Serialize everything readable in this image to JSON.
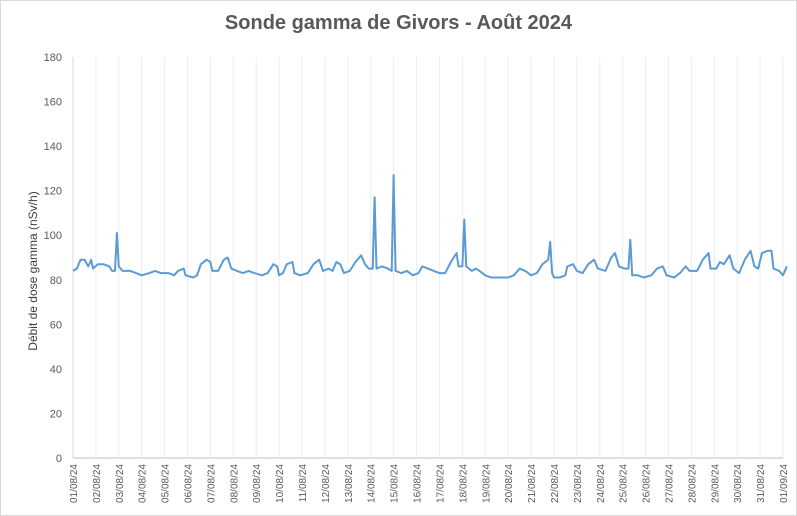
{
  "chart_data": {
    "type": "line",
    "title": "Sonde gamma de Givors - Août 2024",
    "xlabel": "",
    "ylabel": "Débit de dose gamma (nSv/h)",
    "ylim": [
      0,
      180
    ],
    "yticks": [
      0,
      20,
      40,
      60,
      80,
      100,
      120,
      140,
      160,
      180
    ],
    "xticks": [
      "01/08/24",
      "02/08/24",
      "03/08/24",
      "04/08/24",
      "05/08/24",
      "06/08/24",
      "07/08/24",
      "08/08/24",
      "09/08/24",
      "10/08/24",
      "11/08/24",
      "12/08/24",
      "13/08/24",
      "14/08/24",
      "15/08/24",
      "16/08/24",
      "17/08/24",
      "18/08/24",
      "19/08/24",
      "20/08/24",
      "21/08/24",
      "22/08/24",
      "23/08/24",
      "24/08/24",
      "25/08/24",
      "26/08/24",
      "27/08/24",
      "28/08/24",
      "29/08/24",
      "30/08/24",
      "31/08/24",
      "01/09/24"
    ],
    "xlim": [
      "01/08/24",
      "01/09/24"
    ],
    "grid": "vertical",
    "legend": "none",
    "series": [
      {
        "color": "#5b9bd5",
        "points": [
          [
            "01/08/24 00:00",
            84
          ],
          [
            "01/08/24 04:00",
            85
          ],
          [
            "01/08/24 08:00",
            89
          ],
          [
            "01/08/24 12:00",
            89
          ],
          [
            "01/08/24 16:00",
            86
          ],
          [
            "01/08/24 19:00",
            89
          ],
          [
            "01/08/24 21:00",
            85
          ],
          [
            "02/08/24 02:00",
            87
          ],
          [
            "02/08/24 08:00",
            87
          ],
          [
            "02/08/24 14:00",
            86
          ],
          [
            "02/08/24 17:00",
            84
          ],
          [
            "02/08/24 20:00",
            84
          ],
          [
            "02/08/24 22:00",
            101
          ],
          [
            "03/08/24 00:00",
            86
          ],
          [
            "03/08/24 04:00",
            84
          ],
          [
            "03/08/24 12:00",
            84
          ],
          [
            "03/08/24 18:00",
            83
          ],
          [
            "04/08/24 00:00",
            82
          ],
          [
            "04/08/24 08:00",
            83
          ],
          [
            "04/08/24 14:00",
            84
          ],
          [
            "04/08/24 20:00",
            83
          ],
          [
            "05/08/24 04:00",
            83
          ],
          [
            "05/08/24 10:00",
            82
          ],
          [
            "05/08/24 14:00",
            84
          ],
          [
            "05/08/24 20:00",
            85
          ],
          [
            "05/08/24 22:00",
            82
          ],
          [
            "06/08/24 06:00",
            81
          ],
          [
            "06/08/24 10:00",
            82
          ],
          [
            "06/08/24 14:00",
            87
          ],
          [
            "06/08/24 20:00",
            89
          ],
          [
            "07/08/24 00:00",
            88
          ],
          [
            "07/08/24 02:00",
            84
          ],
          [
            "07/08/24 08:00",
            84
          ],
          [
            "07/08/24 14:00",
            89
          ],
          [
            "07/08/24 18:00",
            90
          ],
          [
            "07/08/24 22:00",
            85
          ],
          [
            "08/08/24 04:00",
            84
          ],
          [
            "08/08/24 10:00",
            83
          ],
          [
            "08/08/24 16:00",
            84
          ],
          [
            "08/08/24 22:00",
            83
          ],
          [
            "09/08/24 06:00",
            82
          ],
          [
            "09/08/24 12:00",
            83
          ],
          [
            "09/08/24 18:00",
            87
          ],
          [
            "09/08/24 22:00",
            86
          ],
          [
            "10/08/24 00:00",
            82
          ],
          [
            "10/08/24 04:00",
            83
          ],
          [
            "10/08/24 08:00",
            87
          ],
          [
            "10/08/24 14:00",
            88
          ],
          [
            "10/08/24 16:00",
            83
          ],
          [
            "10/08/24 22:00",
            82
          ],
          [
            "11/08/24 06:00",
            83
          ],
          [
            "11/08/24 12:00",
            87
          ],
          [
            "11/08/24 18:00",
            89
          ],
          [
            "11/08/24 22:00",
            84
          ],
          [
            "12/08/24 04:00",
            85
          ],
          [
            "12/08/24 08:00",
            84
          ],
          [
            "12/08/24 12:00",
            88
          ],
          [
            "12/08/24 16:00",
            87
          ],
          [
            "12/08/24 20:00",
            83
          ],
          [
            "13/08/24 02:00",
            84
          ],
          [
            "13/08/24 08:00",
            88
          ],
          [
            "13/08/24 14:00",
            91
          ],
          [
            "13/08/24 18:00",
            87
          ],
          [
            "13/08/24 22:00",
            85
          ],
          [
            "14/08/24 02:00",
            85
          ],
          [
            "14/08/24 04:00",
            117
          ],
          [
            "14/08/24 06:00",
            85
          ],
          [
            "14/08/24 12:00",
            86
          ],
          [
            "14/08/24 18:00",
            85
          ],
          [
            "14/08/24 22:00",
            84
          ],
          [
            "15/08/24 00:00",
            127
          ],
          [
            "15/08/24 02:00",
            84
          ],
          [
            "15/08/24 08:00",
            83
          ],
          [
            "15/08/24 14:00",
            84
          ],
          [
            "15/08/24 20:00",
            82
          ],
          [
            "16/08/24 02:00",
            83
          ],
          [
            "16/08/24 06:00",
            86
          ],
          [
            "16/08/24 12:00",
            85
          ],
          [
            "16/08/24 18:00",
            84
          ],
          [
            "17/08/24 00:00",
            83
          ],
          [
            "17/08/24 06:00",
            83
          ],
          [
            "17/08/24 12:00",
            88
          ],
          [
            "17/08/24 18:00",
            92
          ],
          [
            "17/08/24 20:00",
            86
          ],
          [
            "18/08/24 00:00",
            86
          ],
          [
            "18/08/24 02:00",
            107
          ],
          [
            "18/08/24 04:00",
            86
          ],
          [
            "18/08/24 10:00",
            84
          ],
          [
            "18/08/24 14:00",
            85
          ],
          [
            "18/08/24 18:00",
            84
          ],
          [
            "19/08/24 00:00",
            82
          ],
          [
            "19/08/24 06:00",
            81
          ],
          [
            "19/08/24 12:00",
            81
          ],
          [
            "19/08/24 18:00",
            81
          ],
          [
            "20/08/24 00:00",
            81
          ],
          [
            "20/08/24 06:00",
            82
          ],
          [
            "20/08/24 12:00",
            85
          ],
          [
            "20/08/24 18:00",
            84
          ],
          [
            "21/08/24 00:00",
            82
          ],
          [
            "21/08/24 06:00",
            83
          ],
          [
            "21/08/24 12:00",
            87
          ],
          [
            "21/08/24 18:00",
            89
          ],
          [
            "21/08/24 20:00",
            97
          ],
          [
            "21/08/24 22:00",
            83
          ],
          [
            "22/08/24 00:00",
            81
          ],
          [
            "22/08/24 06:00",
            81
          ],
          [
            "22/08/24 12:00",
            82
          ],
          [
            "22/08/24 14:00",
            86
          ],
          [
            "22/08/24 20:00",
            87
          ],
          [
            "23/08/24 00:00",
            84
          ],
          [
            "23/08/24 06:00",
            83
          ],
          [
            "23/08/24 12:00",
            87
          ],
          [
            "23/08/24 18:00",
            89
          ],
          [
            "23/08/24 22:00",
            85
          ],
          [
            "24/08/24 06:00",
            84
          ],
          [
            "24/08/24 12:00",
            90
          ],
          [
            "24/08/24 16:00",
            92
          ],
          [
            "24/08/24 20:00",
            86
          ],
          [
            "25/08/24 02:00",
            85
          ],
          [
            "25/08/24 06:00",
            85
          ],
          [
            "25/08/24 08:00",
            98
          ],
          [
            "25/08/24 10:00",
            82
          ],
          [
            "25/08/24 16:00",
            82
          ],
          [
            "25/08/24 22:00",
            81
          ],
          [
            "26/08/24 06:00",
            82
          ],
          [
            "26/08/24 12:00",
            85
          ],
          [
            "26/08/24 18:00",
            86
          ],
          [
            "26/08/24 22:00",
            82
          ],
          [
            "27/08/24 06:00",
            81
          ],
          [
            "27/08/24 12:00",
            83
          ],
          [
            "27/08/24 18:00",
            86
          ],
          [
            "27/08/24 22:00",
            84
          ],
          [
            "28/08/24 06:00",
            84
          ],
          [
            "28/08/24 12:00",
            89
          ],
          [
            "28/08/24 18:00",
            92
          ],
          [
            "28/08/24 20:00",
            85
          ],
          [
            "29/08/24 02:00",
            85
          ],
          [
            "29/08/24 06:00",
            88
          ],
          [
            "29/08/24 10:00",
            87
          ],
          [
            "29/08/24 16:00",
            91
          ],
          [
            "29/08/24 20:00",
            85
          ],
          [
            "30/08/24 02:00",
            83
          ],
          [
            "30/08/24 08:00",
            89
          ],
          [
            "30/08/24 14:00",
            93
          ],
          [
            "30/08/24 18:00",
            86
          ],
          [
            "30/08/24 22:00",
            85
          ],
          [
            "31/08/24 02:00",
            92
          ],
          [
            "31/08/24 08:00",
            93
          ],
          [
            "31/08/24 12:00",
            93
          ],
          [
            "31/08/24 14:00",
            85
          ],
          [
            "31/08/24 20:00",
            84
          ],
          [
            "01/09/24 00:00",
            82
          ],
          [
            "01/09/24 04:00",
            86
          ]
        ]
      }
    ]
  }
}
